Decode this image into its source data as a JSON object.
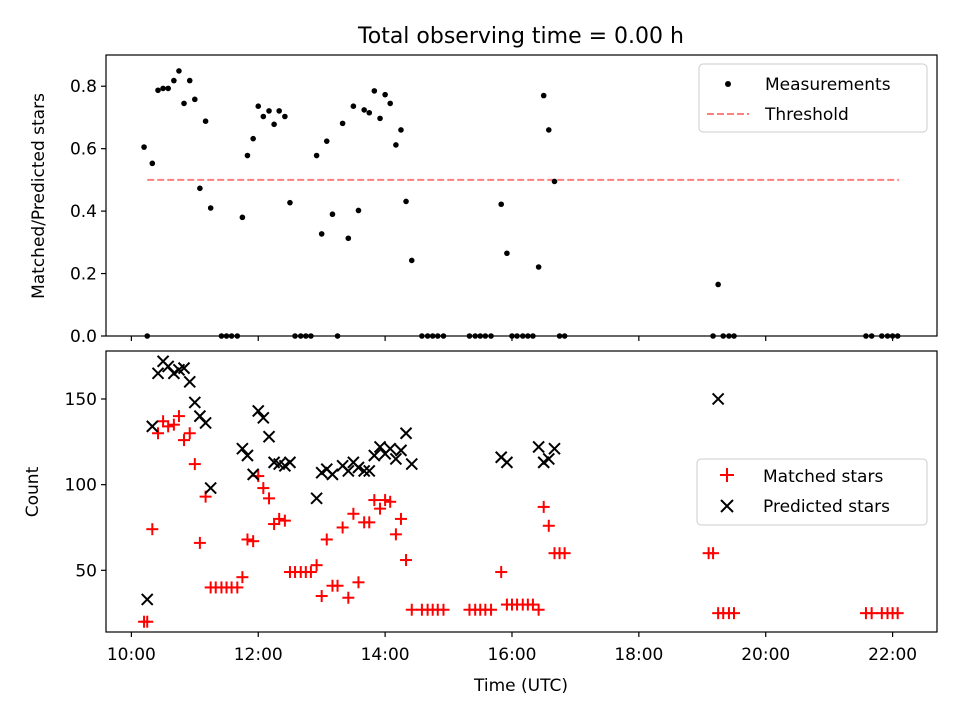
{
  "chart_data": [
    {
      "type": "scatter",
      "title": "Total observing time = 0.00 h",
      "xlabel": "",
      "ylabel": "Matched/Predicted stars",
      "xlim": [
        9.6,
        22.7
      ],
      "ylim": [
        0.0,
        0.9
      ],
      "x_ticks": [
        "10:00",
        "12:00",
        "14:00",
        "16:00",
        "18:00",
        "20:00",
        "22:00"
      ],
      "y_ticks": [
        "0.0",
        "0.2",
        "0.4",
        "0.6",
        "0.8"
      ],
      "legend": {
        "position": "top-right",
        "entries": [
          "Measurements",
          "Threshold"
        ]
      },
      "threshold": {
        "name": "Threshold",
        "value": 0.5,
        "x": [
          10.25,
          22.1
        ],
        "color": "#ff7f7f",
        "style": "dashed"
      },
      "series": [
        {
          "name": "Measurements",
          "color": "#000000",
          "marker": "dot",
          "points": [
            [
              10.2,
              0.605
            ],
            [
              10.25,
              0.0
            ],
            [
              10.33,
              0.553
            ],
            [
              10.42,
              0.787
            ],
            [
              10.5,
              0.793
            ],
            [
              10.58,
              0.793
            ],
            [
              10.67,
              0.818
            ],
            [
              10.75,
              0.849
            ],
            [
              10.83,
              0.745
            ],
            [
              10.92,
              0.818
            ],
            [
              11.0,
              0.758
            ],
            [
              11.08,
              0.473
            ],
            [
              11.17,
              0.688
            ],
            [
              11.25,
              0.41
            ],
            [
              11.42,
              0.0
            ],
            [
              11.5,
              0.0
            ],
            [
              11.58,
              0.0
            ],
            [
              11.67,
              0.0
            ],
            [
              11.75,
              0.38
            ],
            [
              11.83,
              0.578
            ],
            [
              11.92,
              0.632
            ],
            [
              12.0,
              0.736
            ],
            [
              12.08,
              0.703
            ],
            [
              12.17,
              0.721
            ],
            [
              12.25,
              0.678
            ],
            [
              12.33,
              0.721
            ],
            [
              12.42,
              0.703
            ],
            [
              12.5,
              0.427
            ],
            [
              12.58,
              0.0
            ],
            [
              12.67,
              0.0
            ],
            [
              12.75,
              0.0
            ],
            [
              12.83,
              0.0
            ],
            [
              12.92,
              0.578
            ],
            [
              13.0,
              0.327
            ],
            [
              13.08,
              0.624
            ],
            [
              13.17,
              0.39
            ],
            [
              13.25,
              0.0
            ],
            [
              13.33,
              0.681
            ],
            [
              13.42,
              0.313
            ],
            [
              13.5,
              0.736
            ],
            [
              13.58,
              0.402
            ],
            [
              13.67,
              0.724
            ],
            [
              13.75,
              0.715
            ],
            [
              13.83,
              0.785
            ],
            [
              13.92,
              0.697
            ],
            [
              14.0,
              0.773
            ],
            [
              14.08,
              0.745
            ],
            [
              14.17,
              0.612
            ],
            [
              14.25,
              0.66
            ],
            [
              14.33,
              0.431
            ],
            [
              14.42,
              0.242
            ],
            [
              14.58,
              0.0
            ],
            [
              14.67,
              0.0
            ],
            [
              14.75,
              0.0
            ],
            [
              14.83,
              0.0
            ],
            [
              14.92,
              0.0
            ],
            [
              15.33,
              0.0
            ],
            [
              15.42,
              0.0
            ],
            [
              15.5,
              0.0
            ],
            [
              15.58,
              0.0
            ],
            [
              15.67,
              0.0
            ],
            [
              15.83,
              0.422
            ],
            [
              15.92,
              0.265
            ],
            [
              16.0,
              0.0
            ],
            [
              16.08,
              0.0
            ],
            [
              16.17,
              0.0
            ],
            [
              16.25,
              0.0
            ],
            [
              16.33,
              0.0
            ],
            [
              16.42,
              0.221
            ],
            [
              16.5,
              0.77
            ],
            [
              16.58,
              0.66
            ],
            [
              16.67,
              0.495
            ],
            [
              16.75,
              0.0
            ],
            [
              16.83,
              0.0
            ],
            [
              19.17,
              0.0
            ],
            [
              19.25,
              0.165
            ],
            [
              19.33,
              0.0
            ],
            [
              19.42,
              0.0
            ],
            [
              19.5,
              0.0
            ],
            [
              21.58,
              0.0
            ],
            [
              21.67,
              0.0
            ],
            [
              21.83,
              0.0
            ],
            [
              21.92,
              0.0
            ],
            [
              22.0,
              0.0
            ],
            [
              22.08,
              0.0
            ]
          ]
        }
      ]
    },
    {
      "type": "scatter",
      "title": "",
      "xlabel": "Time (UTC)",
      "ylabel": "Count",
      "xlim": [
        9.6,
        22.7
      ],
      "ylim": [
        14,
        178
      ],
      "x_ticks": [
        "10:00",
        "12:00",
        "14:00",
        "16:00",
        "18:00",
        "20:00",
        "22:00"
      ],
      "y_ticks": [
        "50",
        "100",
        "150"
      ],
      "legend": {
        "position": "right",
        "entries": [
          "Matched stars",
          "Predicted stars"
        ]
      },
      "series": [
        {
          "name": "Matched stars",
          "color": "#ff0000",
          "marker": "plus",
          "points": [
            [
              10.2,
              20
            ],
            [
              10.25,
              20
            ],
            [
              10.33,
              74
            ],
            [
              10.42,
              130
            ],
            [
              10.5,
              137
            ],
            [
              10.58,
              134
            ],
            [
              10.67,
              135
            ],
            [
              10.75,
              140
            ],
            [
              10.83,
              126
            ],
            [
              10.92,
              130
            ],
            [
              11.0,
              112
            ],
            [
              11.08,
              66
            ],
            [
              11.17,
              93
            ],
            [
              11.25,
              40
            ],
            [
              11.33,
              40
            ],
            [
              11.42,
              40
            ],
            [
              11.5,
              40
            ],
            [
              11.58,
              40
            ],
            [
              11.67,
              40
            ],
            [
              11.75,
              46
            ],
            [
              11.83,
              68
            ],
            [
              11.92,
              67
            ],
            [
              12.0,
              105
            ],
            [
              12.08,
              98
            ],
            [
              12.17,
              92
            ],
            [
              12.25,
              77
            ],
            [
              12.33,
              80
            ],
            [
              12.42,
              79
            ],
            [
              12.5,
              49
            ],
            [
              12.58,
              49
            ],
            [
              12.67,
              49
            ],
            [
              12.75,
              49
            ],
            [
              12.83,
              49
            ],
            [
              12.92,
              53
            ],
            [
              13.0,
              35
            ],
            [
              13.08,
              68
            ],
            [
              13.17,
              41
            ],
            [
              13.25,
              41
            ],
            [
              13.33,
              75
            ],
            [
              13.42,
              34
            ],
            [
              13.5,
              83
            ],
            [
              13.58,
              43
            ],
            [
              13.67,
              78
            ],
            [
              13.75,
              78
            ],
            [
              13.83,
              91
            ],
            [
              13.92,
              86
            ],
            [
              14.0,
              91
            ],
            [
              14.08,
              90
            ],
            [
              14.17,
              71
            ],
            [
              14.25,
              80
            ],
            [
              14.33,
              56
            ],
            [
              14.42,
              27
            ],
            [
              14.58,
              27
            ],
            [
              14.67,
              27
            ],
            [
              14.75,
              27
            ],
            [
              14.83,
              27
            ],
            [
              14.92,
              27
            ],
            [
              15.33,
              27
            ],
            [
              15.42,
              27
            ],
            [
              15.5,
              27
            ],
            [
              15.58,
              27
            ],
            [
              15.67,
              27
            ],
            [
              15.83,
              49
            ],
            [
              15.92,
              30
            ],
            [
              16.0,
              30
            ],
            [
              16.08,
              30
            ],
            [
              16.17,
              30
            ],
            [
              16.25,
              30
            ],
            [
              16.33,
              30
            ],
            [
              16.42,
              27
            ],
            [
              16.5,
              87
            ],
            [
              16.58,
              76
            ],
            [
              16.67,
              60
            ],
            [
              16.75,
              60
            ],
            [
              16.83,
              60
            ],
            [
              19.1,
              60
            ],
            [
              19.17,
              60
            ],
            [
              19.25,
              25
            ],
            [
              19.33,
              25
            ],
            [
              19.42,
              25
            ],
            [
              19.5,
              25
            ],
            [
              21.58,
              25
            ],
            [
              21.67,
              25
            ],
            [
              21.83,
              25
            ],
            [
              21.92,
              25
            ],
            [
              22.0,
              25
            ],
            [
              22.08,
              25
            ]
          ]
        },
        {
          "name": "Predicted stars",
          "color": "#000000",
          "marker": "x",
          "points": [
            [
              10.25,
              33
            ],
            [
              10.33,
              134
            ],
            [
              10.42,
              165
            ],
            [
              10.5,
              172
            ],
            [
              10.58,
              169
            ],
            [
              10.67,
              165
            ],
            [
              10.75,
              167
            ],
            [
              10.83,
              168
            ],
            [
              10.92,
              160
            ],
            [
              11.0,
              148
            ],
            [
              11.08,
              140
            ],
            [
              11.17,
              136
            ],
            [
              11.25,
              98
            ],
            [
              11.75,
              121
            ],
            [
              11.83,
              117
            ],
            [
              11.92,
              106
            ],
            [
              12.0,
              143
            ],
            [
              12.08,
              139
            ],
            [
              12.17,
              128
            ],
            [
              12.25,
              113
            ],
            [
              12.33,
              112
            ],
            [
              12.42,
              111
            ],
            [
              12.5,
              113
            ],
            [
              12.92,
              92
            ],
            [
              13.0,
              107
            ],
            [
              13.08,
              109
            ],
            [
              13.17,
              106
            ],
            [
              13.33,
              111
            ],
            [
              13.42,
              108
            ],
            [
              13.5,
              113
            ],
            [
              13.58,
              110
            ],
            [
              13.67,
              108
            ],
            [
              13.75,
              108
            ],
            [
              13.83,
              117
            ],
            [
              13.92,
              122
            ],
            [
              14.0,
              118
            ],
            [
              14.08,
              121
            ],
            [
              14.17,
              115
            ],
            [
              14.25,
              120
            ],
            [
              14.33,
              130
            ],
            [
              14.42,
              112
            ],
            [
              15.83,
              116
            ],
            [
              15.92,
              113
            ],
            [
              16.42,
              122
            ],
            [
              16.5,
              113
            ],
            [
              16.58,
              115
            ],
            [
              16.67,
              121
            ],
            [
              19.25,
              150
            ]
          ]
        }
      ]
    }
  ]
}
